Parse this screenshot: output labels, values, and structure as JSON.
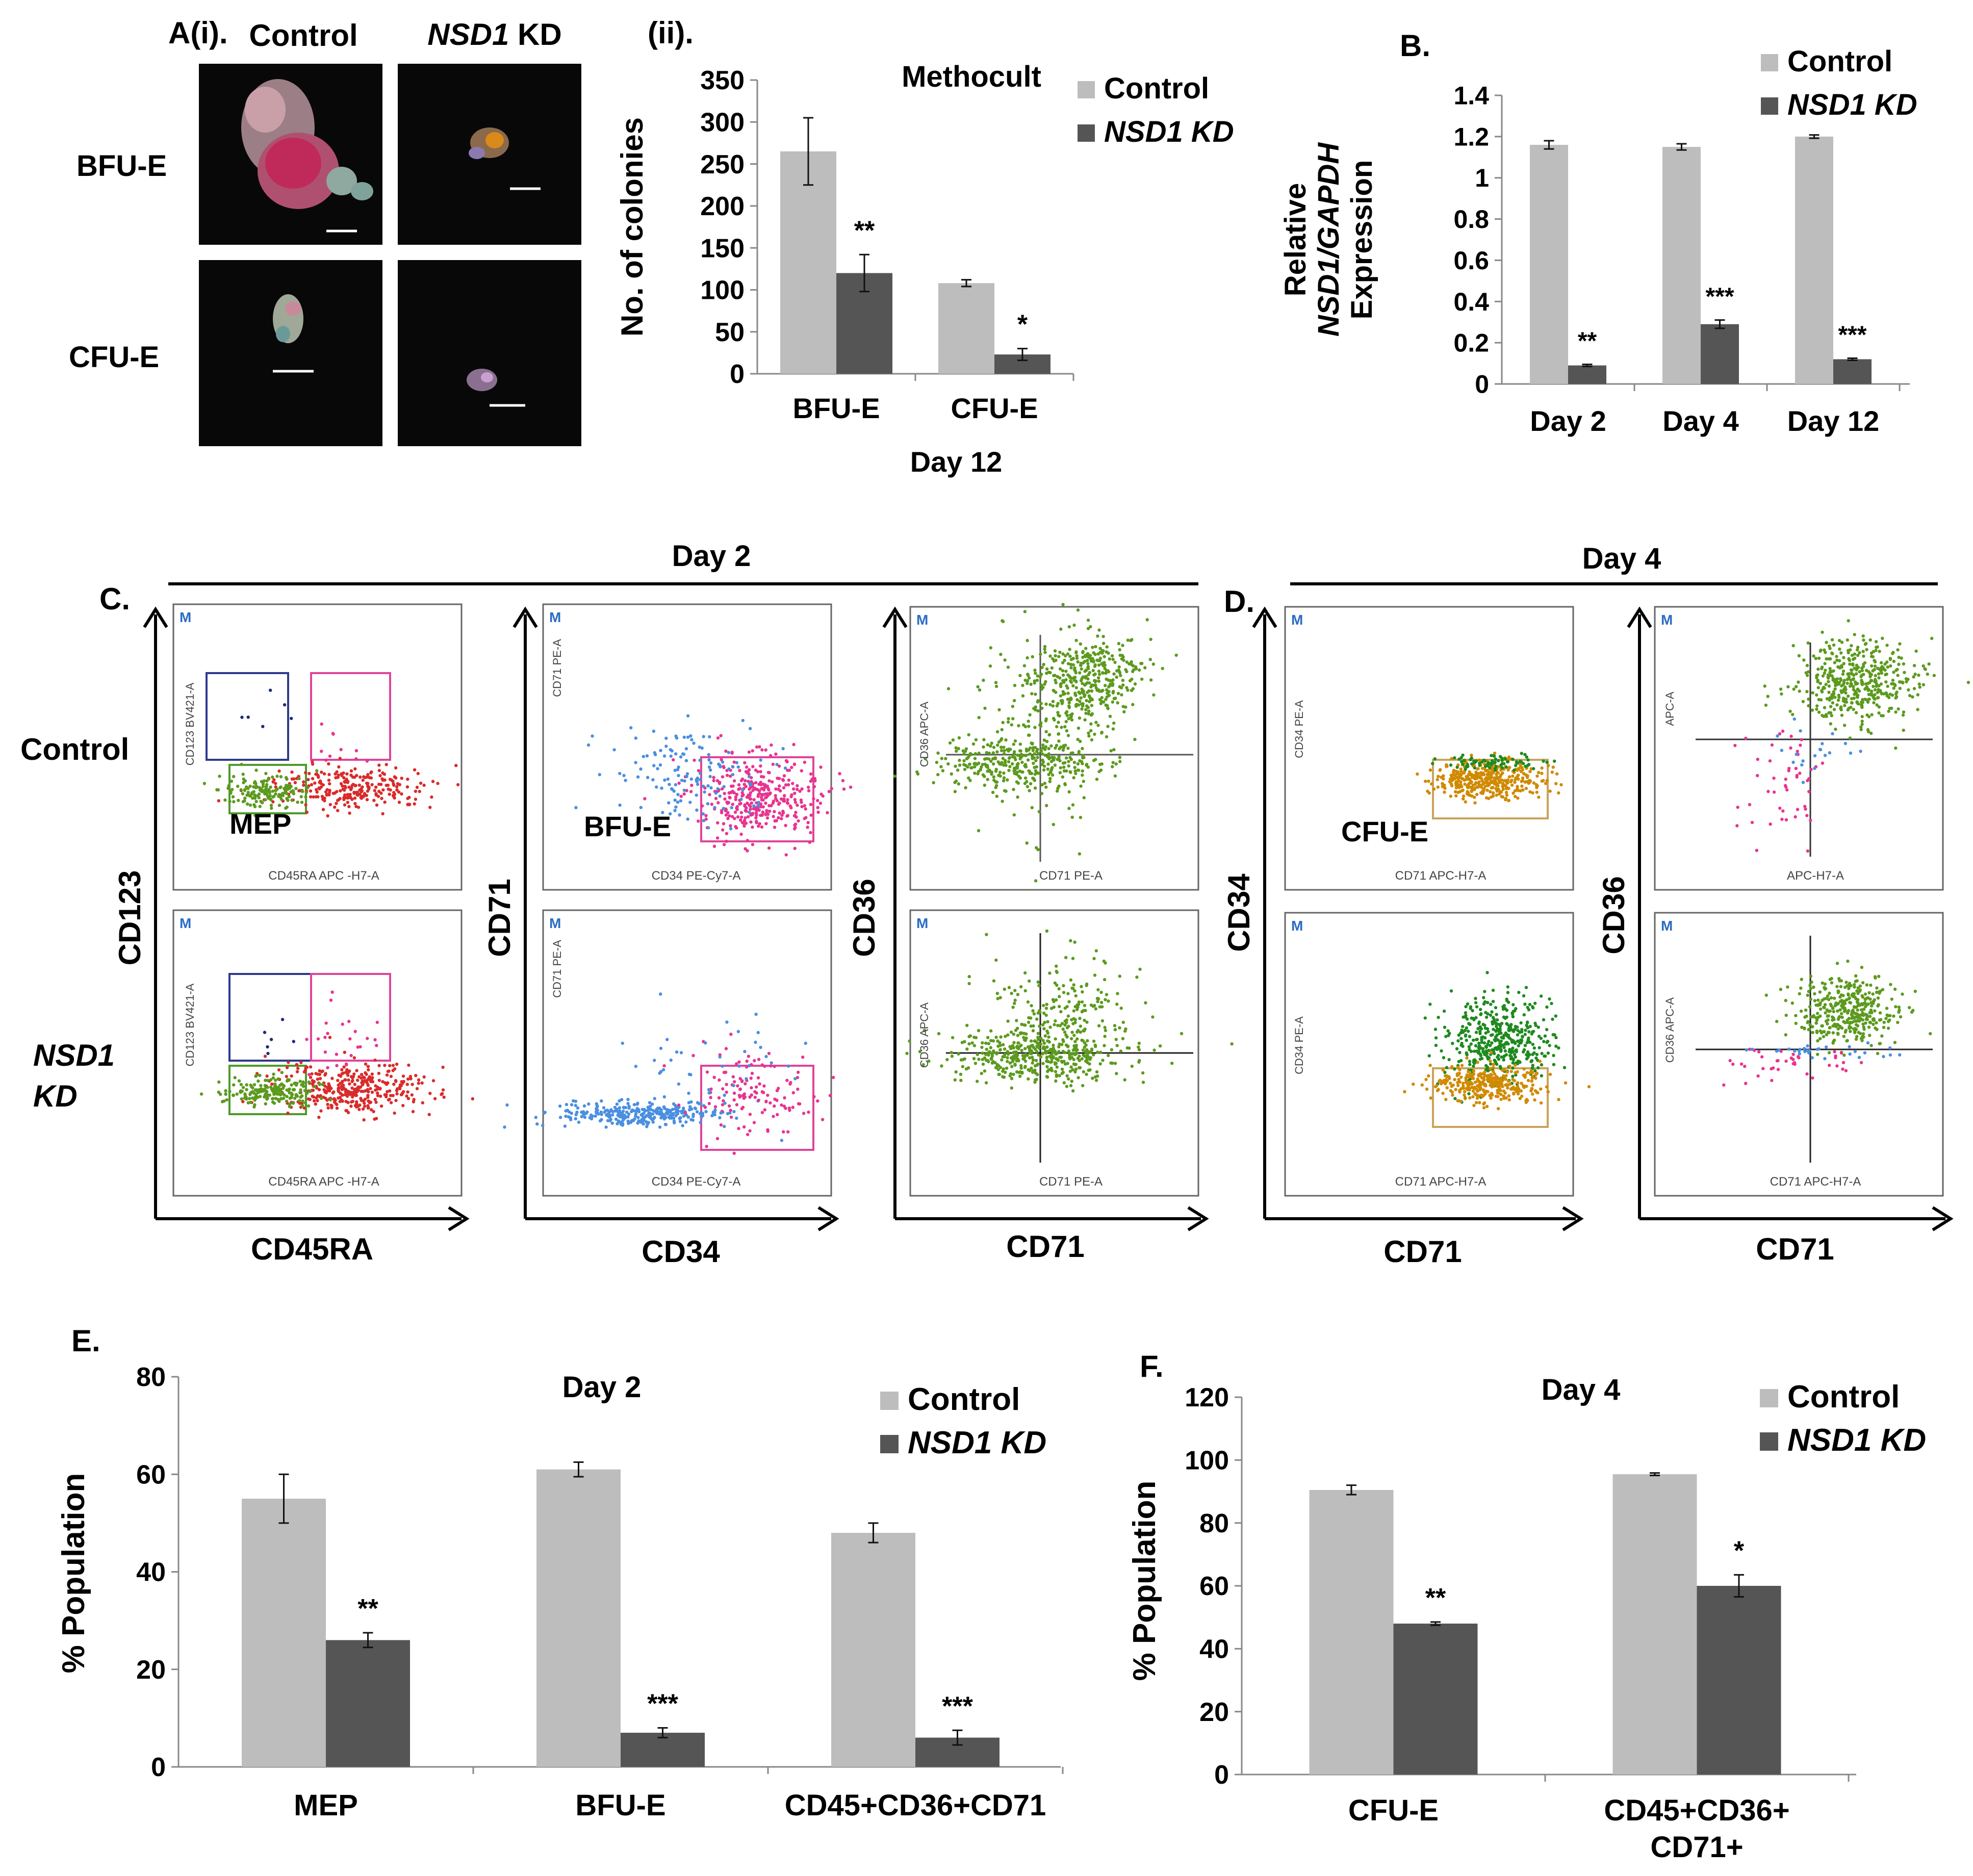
{
  "colors": {
    "control": "#BDBDBD",
    "kd": "#555555",
    "axis": "#000000",
    "bg": "#ffffff",
    "micro_bg": "#080808",
    "gate_blue": "#2E3A8C",
    "gate_pink": "#E0449A",
    "gate_green": "#4E9A2A",
    "gate_orange": "#C9A35A",
    "dot_green": "#5C9A1E",
    "dot_red": "#D92B2B",
    "dot_blue": "#4A8FE0",
    "dot_pink": "#E8348F",
    "dot_navy": "#1E2A78",
    "dot_dkgreen": "#1E8A1E",
    "dot_orange": "#D08A00"
  },
  "panel_a": {
    "label": "A(i).",
    "col_control": "Control",
    "col_kd_italic": "NSD1",
    "col_kd_rest": " KD",
    "row_bfu": "BFU-E",
    "row_cfu": "CFU-E",
    "sub_label": "(ii)."
  },
  "chart_data": [
    {
      "id": "A_ii",
      "type": "bar",
      "title": "Methocult",
      "ylabel": "No. of colonies",
      "xlabel": "Day 12",
      "categories": [
        "BFU-E",
        "CFU-E"
      ],
      "ylim": [
        0,
        350
      ],
      "yticks": [
        "0",
        "50",
        "100",
        "150",
        "200",
        "250",
        "300",
        "350"
      ],
      "series": [
        {
          "name": "Control",
          "values": [
            265,
            108
          ],
          "errors": [
            40,
            4
          ]
        },
        {
          "name": "NSD1 KD",
          "values": [
            120,
            23
          ],
          "errors": [
            22,
            7
          ]
        }
      ],
      "annotations": [
        "**",
        "*"
      ],
      "legend": [
        "Control",
        "NSD1 KD"
      ]
    },
    {
      "id": "B",
      "type": "bar",
      "label": "B.",
      "ylabel_lines": [
        "Relative",
        "NSD1/GAPDH",
        "Expression"
      ],
      "categories": [
        "Day 2",
        "Day 4",
        "Day 12"
      ],
      "ylim": [
        0,
        1.4
      ],
      "yticks": [
        "0",
        "0.2",
        "0.4",
        "0.6",
        "0.8",
        "1",
        "1.2",
        "1.4"
      ],
      "series": [
        {
          "name": "Control",
          "values": [
            1.16,
            1.15,
            1.2
          ],
          "errors": [
            0.02,
            0.015,
            0.008
          ]
        },
        {
          "name": "NSD1 KD",
          "values": [
            0.09,
            0.29,
            0.12
          ],
          "errors": [
            0.005,
            0.02,
            0.005
          ]
        }
      ],
      "annotations": [
        "**",
        "***",
        "***"
      ],
      "legend": [
        "Control",
        "NSD1 KD"
      ]
    },
    {
      "id": "E",
      "type": "bar",
      "label": "E.",
      "title": "Day 2",
      "ylabel": "% Population",
      "categories": [
        "MEP",
        "BFU-E",
        "CD45+CD36+CD71"
      ],
      "ylim": [
        0,
        80
      ],
      "yticks": [
        "0",
        "20",
        "40",
        "60",
        "80"
      ],
      "series": [
        {
          "name": "Control",
          "values": [
            55,
            61,
            48
          ],
          "errors": [
            5,
            1.5,
            2
          ]
        },
        {
          "name": "NSD1 KD",
          "values": [
            26,
            7,
            6
          ],
          "errors": [
            1.5,
            1,
            1.5
          ]
        }
      ],
      "annotations": [
        "**",
        "***",
        "***"
      ],
      "legend": [
        "Control",
        "NSD1 KD"
      ]
    },
    {
      "id": "F",
      "type": "bar",
      "label": "F.",
      "title": "Day 4",
      "ylabel": "% Population",
      "categories": [
        "CFU-E",
        "CD45+CD36+ CD71+"
      ],
      "ylim": [
        0,
        120
      ],
      "yticks": [
        "0",
        "20",
        "40",
        "60",
        "80",
        "100",
        "120"
      ],
      "series": [
        {
          "name": "Control",
          "values": [
            90.5,
            95.5
          ],
          "errors": [
            1.5,
            0.4
          ]
        },
        {
          "name": "NSD1 KD",
          "values": [
            48,
            60
          ],
          "errors": [
            0.5,
            3.5
          ]
        }
      ],
      "annotations": [
        "**",
        "*"
      ],
      "legend": [
        "Control",
        "NSD1 KD"
      ]
    }
  ],
  "panel_c": {
    "label": "C.",
    "day": "Day 2",
    "row_control": "Control",
    "row_kd_1": "NSD1",
    "row_kd_2": "KD",
    "axis_y1": "CD123",
    "axis_x1": "CD45RA",
    "axis_y2": "CD71",
    "axis_x2": "CD34",
    "axis_y3": "CD36",
    "axis_x3": "CD71",
    "gate_mep": "MEP",
    "gate_bfu": "BFU-E",
    "plot1_xlabel": "CD45RA APC -H7-A",
    "plot1_ylabel": "CD123 BV421-A",
    "plot2_xlabel": "CD34 PE-Cy7-A",
    "plot2_ylabel": "CD71 PE-A",
    "plot3_xlabel": "CD71 PE-A",
    "plot3_ylabel": "CD36 APC-A",
    "m_badge": "M"
  },
  "panel_d": {
    "label": "D.",
    "day": "Day 4",
    "axis_y1": "CD34",
    "axis_x1": "CD71",
    "axis_y2": "CD36",
    "axis_x2": "CD71",
    "gate_cfu": "CFU-E",
    "plot1_xlabel": "CD71 APC-H7-A",
    "plot1_ylabel": "CD34 PE-A",
    "plot2_xlabel_top": "APC-H7-A",
    "plot2_ylabel_top": "APC-A",
    "plot2_xlabel_bottom": "CD71 APC-H7-A",
    "plot2_ylabel_bottom": "CD36 APC-A",
    "m_badge": "M"
  }
}
